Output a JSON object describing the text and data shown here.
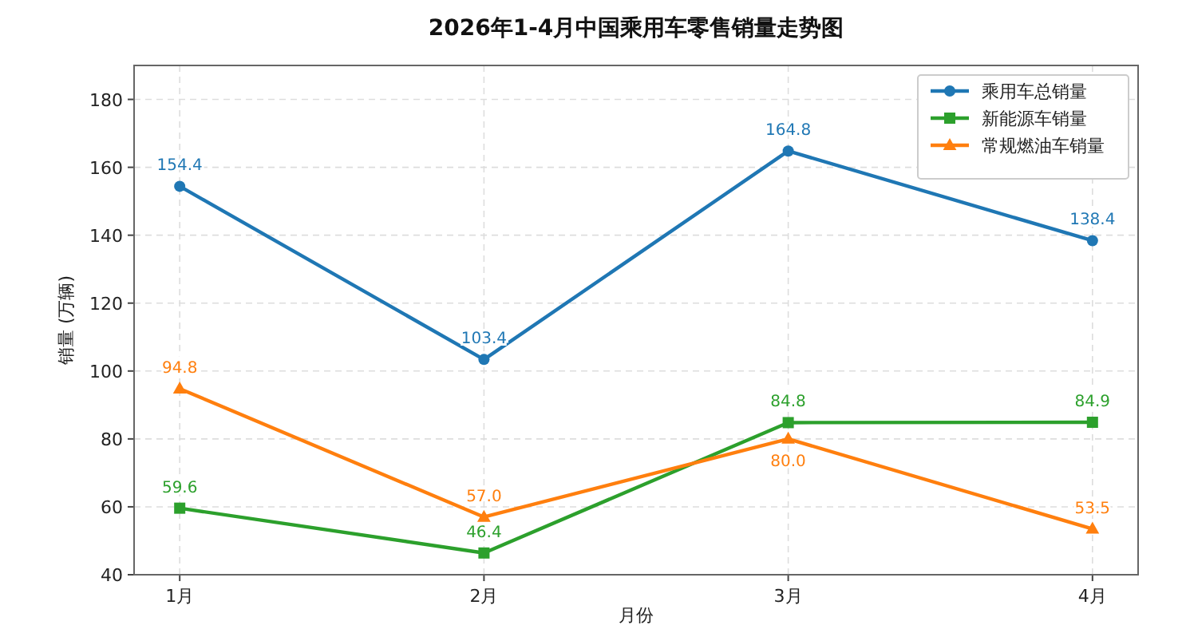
{
  "chart_data": {
    "type": "line",
    "title": "2026年1-4月中国乘用车零售销量走势图",
    "xlabel": "月份",
    "ylabel": "销量 (万辆)",
    "categories": [
      "1月",
      "2月",
      "3月",
      "4月"
    ],
    "series": [
      {
        "name": "乘用车总销量",
        "color": "#1f77b4",
        "marker": "circle",
        "values": [
          154.4,
          103.4,
          164.8,
          138.4
        ],
        "value_labels": [
          "154.4",
          "103.4",
          "164.8",
          "138.4"
        ]
      },
      {
        "name": "新能源车销量",
        "color": "#2ca02c",
        "marker": "square",
        "values": [
          59.6,
          46.4,
          84.8,
          84.9
        ],
        "value_labels": [
          "59.6",
          "46.4",
          "84.8",
          "84.9"
        ]
      },
      {
        "name": "常规燃油车销量",
        "color": "#ff7f0e",
        "marker": "triangle",
        "values": [
          94.8,
          57.0,
          80.0,
          53.5
        ],
        "value_labels": [
          "94.8",
          "57.0",
          "80.0",
          "53.5"
        ]
      }
    ],
    "ylim": [
      40,
      190
    ],
    "yticks": [
      40,
      60,
      80,
      100,
      120,
      140,
      160,
      180
    ],
    "grid": true,
    "legend": "top right",
    "line_style": "solid"
  }
}
